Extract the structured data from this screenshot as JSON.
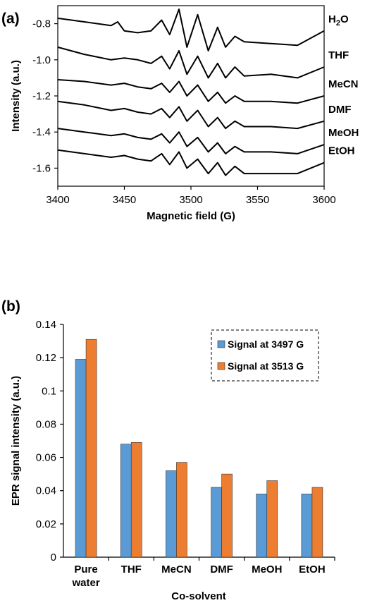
{
  "chart_data": [
    {
      "type": "line",
      "panel_label": "(a)",
      "xlabel": "Magnetic field (G)",
      "ylabel": "Intensity (a.u.)",
      "xlim": [
        3400,
        3600
      ],
      "ylim": [
        -1.7,
        -0.7
      ],
      "x_ticks": [
        "3400",
        "3450",
        "3500",
        "3550",
        "3600"
      ],
      "y_ticks": [
        "-0.8",
        "-1.0",
        "-1.2",
        "-1.4",
        "-1.6"
      ],
      "grid": false,
      "series": [
        {
          "name": "H₂O",
          "label_main": "H",
          "label_sub": "2",
          "label_tail": "O",
          "points": [
            [
              3400,
              -0.77
            ],
            [
              3420,
              -0.79
            ],
            [
              3440,
              -0.81
            ],
            [
              3445,
              -0.79
            ],
            [
              3450,
              -0.84
            ],
            [
              3460,
              -0.85
            ],
            [
              3470,
              -0.84
            ],
            [
              3478,
              -0.78
            ],
            [
              3484,
              -0.86
            ],
            [
              3491,
              -0.72
            ],
            [
              3497,
              -0.93
            ],
            [
              3505,
              -0.75
            ],
            [
              3513,
              -0.95
            ],
            [
              3520,
              -0.82
            ],
            [
              3526,
              -0.93
            ],
            [
              3533,
              -0.87
            ],
            [
              3540,
              -0.9
            ],
            [
              3560,
              -0.91
            ],
            [
              3580,
              -0.92
            ],
            [
              3600,
              -0.84
            ]
          ]
        },
        {
          "name": "THF",
          "points": [
            [
              3400,
              -0.93
            ],
            [
              3420,
              -0.97
            ],
            [
              3440,
              -1.0
            ],
            [
              3450,
              -0.99
            ],
            [
              3460,
              -1.0
            ],
            [
              3470,
              -1.02
            ],
            [
              3478,
              -0.98
            ],
            [
              3484,
              -1.05
            ],
            [
              3491,
              -0.95
            ],
            [
              3497,
              -1.08
            ],
            [
              3505,
              -0.98
            ],
            [
              3513,
              -1.1
            ],
            [
              3520,
              -1.02
            ],
            [
              3526,
              -1.1
            ],
            [
              3533,
              -1.04
            ],
            [
              3540,
              -1.09
            ],
            [
              3560,
              -1.08
            ],
            [
              3580,
              -1.1
            ],
            [
              3600,
              -1.04
            ]
          ]
        },
        {
          "name": "MeCN",
          "points": [
            [
              3400,
              -1.11
            ],
            [
              3420,
              -1.12
            ],
            [
              3440,
              -1.14
            ],
            [
              3450,
              -1.13
            ],
            [
              3460,
              -1.15
            ],
            [
              3470,
              -1.16
            ],
            [
              3478,
              -1.13
            ],
            [
              3484,
              -1.18
            ],
            [
              3491,
              -1.12
            ],
            [
              3497,
              -1.2
            ],
            [
              3505,
              -1.14
            ],
            [
              3513,
              -1.23
            ],
            [
              3520,
              -1.18
            ],
            [
              3526,
              -1.24
            ],
            [
              3533,
              -1.2
            ],
            [
              3540,
              -1.23
            ],
            [
              3560,
              -1.23
            ],
            [
              3580,
              -1.24
            ],
            [
              3600,
              -1.2
            ]
          ]
        },
        {
          "name": "DMF",
          "points": [
            [
              3400,
              -1.23
            ],
            [
              3420,
              -1.25
            ],
            [
              3440,
              -1.28
            ],
            [
              3450,
              -1.27
            ],
            [
              3460,
              -1.29
            ],
            [
              3470,
              -1.3
            ],
            [
              3478,
              -1.27
            ],
            [
              3484,
              -1.32
            ],
            [
              3491,
              -1.26
            ],
            [
              3497,
              -1.34
            ],
            [
              3505,
              -1.28
            ],
            [
              3513,
              -1.37
            ],
            [
              3520,
              -1.32
            ],
            [
              3526,
              -1.38
            ],
            [
              3533,
              -1.34
            ],
            [
              3540,
              -1.37
            ],
            [
              3560,
              -1.37
            ],
            [
              3580,
              -1.38
            ],
            [
              3600,
              -1.34
            ]
          ]
        },
        {
          "name": "MeOH",
          "points": [
            [
              3400,
              -1.38
            ],
            [
              3420,
              -1.4
            ],
            [
              3440,
              -1.42
            ],
            [
              3450,
              -1.41
            ],
            [
              3460,
              -1.43
            ],
            [
              3470,
              -1.44
            ],
            [
              3478,
              -1.41
            ],
            [
              3484,
              -1.46
            ],
            [
              3491,
              -1.4
            ],
            [
              3497,
              -1.48
            ],
            [
              3505,
              -1.43
            ],
            [
              3513,
              -1.51
            ],
            [
              3520,
              -1.46
            ],
            [
              3526,
              -1.52
            ],
            [
              3533,
              -1.48
            ],
            [
              3540,
              -1.51
            ],
            [
              3560,
              -1.51
            ],
            [
              3580,
              -1.52
            ],
            [
              3600,
              -1.47
            ]
          ]
        },
        {
          "name": "EtOH",
          "points": [
            [
              3400,
              -1.5
            ],
            [
              3420,
              -1.52
            ],
            [
              3440,
              -1.54
            ],
            [
              3450,
              -1.53
            ],
            [
              3460,
              -1.55
            ],
            [
              3470,
              -1.56
            ],
            [
              3478,
              -1.52
            ],
            [
              3484,
              -1.58
            ],
            [
              3491,
              -1.51
            ],
            [
              3497,
              -1.6
            ],
            [
              3505,
              -1.55
            ],
            [
              3513,
              -1.63
            ],
            [
              3520,
              -1.57
            ],
            [
              3526,
              -1.64
            ],
            [
              3533,
              -1.59
            ],
            [
              3540,
              -1.63
            ],
            [
              3560,
              -1.63
            ],
            [
              3580,
              -1.63
            ],
            [
              3600,
              -1.57
            ]
          ]
        }
      ]
    },
    {
      "type": "bar",
      "panel_label": "(b)",
      "xlabel": "Co-solvent",
      "ylabel": "EPR signal intensity (a.u.)",
      "ylim": [
        0,
        0.14
      ],
      "y_ticks": [
        "0",
        "0.02",
        "0.04",
        "0.06",
        "0.08",
        "0.1",
        "0.12",
        "0.14"
      ],
      "y_tick_values": [
        0,
        0.02,
        0.04,
        0.06,
        0.08,
        0.1,
        0.12,
        0.14
      ],
      "categories": [
        [
          "Pure",
          "water"
        ],
        [
          "THF"
        ],
        [
          "MeCN"
        ],
        [
          "DMF"
        ],
        [
          "MeOH"
        ],
        [
          "EtOH"
        ]
      ],
      "legend_position": "top-right",
      "series": [
        {
          "name": "Signal at 3497 G",
          "color": "#5b9bd5",
          "values": [
            0.119,
            0.068,
            0.052,
            0.042,
            0.038,
            0.038
          ]
        },
        {
          "name": "Signal at 3513 G",
          "color": "#ed7d31",
          "values": [
            0.131,
            0.069,
            0.057,
            0.05,
            0.046,
            0.042
          ]
        }
      ]
    }
  ]
}
